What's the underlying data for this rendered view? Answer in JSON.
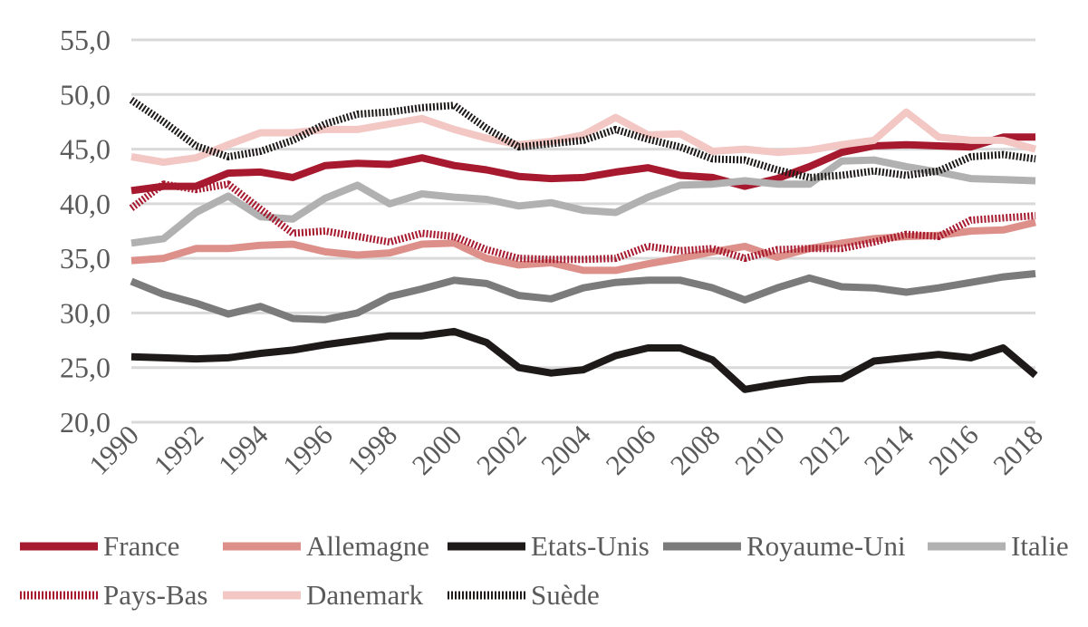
{
  "chart_data": {
    "type": "line",
    "title": "",
    "xlabel": "",
    "ylabel": "",
    "ylim": [
      20,
      55
    ],
    "y_ticks": [
      "20,0",
      "25,0",
      "30,0",
      "35,0",
      "40,0",
      "45,0",
      "50,0",
      "55,0"
    ],
    "x": [
      1990,
      1991,
      1992,
      1993,
      1994,
      1995,
      1996,
      1997,
      1998,
      1999,
      2000,
      2001,
      2002,
      2003,
      2004,
      2005,
      2006,
      2007,
      2008,
      2009,
      2010,
      2011,
      2012,
      2013,
      2014,
      2015,
      2016,
      2017,
      2018
    ],
    "x_tick_labels": [
      "1990",
      "1992",
      "1994",
      "1996",
      "1998",
      "2000",
      "2002",
      "2004",
      "2006",
      "2008",
      "2010",
      "2012",
      "2014",
      "2016",
      "2018"
    ],
    "grid": "horizontal",
    "legend_position": "bottom",
    "series": [
      {
        "name": "France",
        "color": "#a6192e",
        "style": "solid",
        "values": [
          41.2,
          41.6,
          41.6,
          42.8,
          42.9,
          42.4,
          43.5,
          43.7,
          43.6,
          44.2,
          43.5,
          43.1,
          42.5,
          42.3,
          42.4,
          42.9,
          43.3,
          42.6,
          42.4,
          41.6,
          42.3,
          43.4,
          44.7,
          45.3,
          45.4,
          45.3,
          45.2,
          46.1,
          46.1
        ]
      },
      {
        "name": "Allemagne",
        "color": "#dd8f89",
        "style": "solid",
        "values": [
          34.8,
          35.0,
          35.9,
          35.9,
          36.2,
          36.3,
          35.6,
          35.3,
          35.5,
          36.3,
          36.4,
          35.0,
          34.4,
          34.6,
          33.9,
          33.9,
          34.5,
          35.0,
          35.6,
          36.1,
          35.1,
          35.9,
          36.4,
          36.8,
          37.0,
          37.1,
          37.5,
          37.6,
          38.3
        ]
      },
      {
        "name": "Etats-Unis",
        "color": "#1f1a1a",
        "style": "solid",
        "values": [
          26.0,
          25.9,
          25.8,
          25.9,
          26.3,
          26.6,
          27.1,
          27.5,
          27.9,
          27.9,
          28.3,
          27.3,
          25.0,
          24.5,
          24.8,
          26.1,
          26.8,
          26.8,
          25.7,
          23.0,
          23.5,
          23.9,
          24.0,
          25.6,
          25.9,
          26.2,
          25.9,
          26.8,
          24.3
        ]
      },
      {
        "name": "Royaume-Uni",
        "color": "#7b7b7b",
        "style": "solid",
        "values": [
          32.9,
          31.7,
          30.9,
          29.9,
          30.6,
          29.5,
          29.4,
          30.0,
          31.5,
          32.2,
          33.0,
          32.7,
          31.6,
          31.3,
          32.3,
          32.8,
          33.0,
          33.0,
          32.3,
          31.2,
          32.3,
          33.2,
          32.4,
          32.3,
          31.9,
          32.3,
          32.8,
          33.3,
          33.6
        ]
      },
      {
        "name": "Italie",
        "color": "#b1b1b1",
        "style": "solid",
        "values": [
          36.4,
          36.8,
          39.2,
          40.7,
          38.8,
          38.6,
          40.5,
          41.7,
          40.0,
          40.9,
          40.6,
          40.4,
          39.8,
          40.1,
          39.4,
          39.2,
          40.6,
          41.7,
          41.8,
          42.1,
          41.8,
          41.8,
          43.9,
          44.0,
          43.4,
          42.9,
          42.3,
          42.2,
          42.1
        ]
      },
      {
        "name": "Pays-Bas",
        "color": "#a6192e",
        "style": "dotted",
        "values": [
          39.6,
          41.8,
          41.3,
          41.8,
          39.5,
          37.3,
          37.5,
          37.0,
          36.5,
          37.3,
          37.0,
          35.8,
          35.0,
          34.9,
          34.9,
          35.0,
          36.1,
          35.7,
          35.9,
          35.0,
          35.8,
          35.9,
          35.9,
          36.5,
          37.2,
          37.0,
          38.5,
          38.7,
          38.9
        ]
      },
      {
        "name": "Danemark",
        "color": "#f2c7c4",
        "style": "solid",
        "values": [
          44.3,
          43.8,
          44.2,
          45.4,
          46.5,
          46.5,
          46.8,
          46.8,
          47.3,
          47.8,
          46.8,
          46.0,
          45.4,
          45.7,
          46.3,
          47.9,
          46.3,
          46.4,
          44.8,
          45.0,
          44.7,
          44.9,
          45.4,
          45.8,
          48.4,
          46.1,
          45.8,
          45.8,
          45.0
        ]
      },
      {
        "name": "Suède",
        "color": "#1f1a1a",
        "style": "dotted",
        "values": [
          49.5,
          47.5,
          45.3,
          44.3,
          44.8,
          45.8,
          47.3,
          48.2,
          48.4,
          48.8,
          49.0,
          46.9,
          45.2,
          45.5,
          45.8,
          46.8,
          45.9,
          45.2,
          44.1,
          44.0,
          43.1,
          42.4,
          42.6,
          43.0,
          42.6,
          43.0,
          44.3,
          44.5,
          44.1
        ]
      }
    ]
  }
}
